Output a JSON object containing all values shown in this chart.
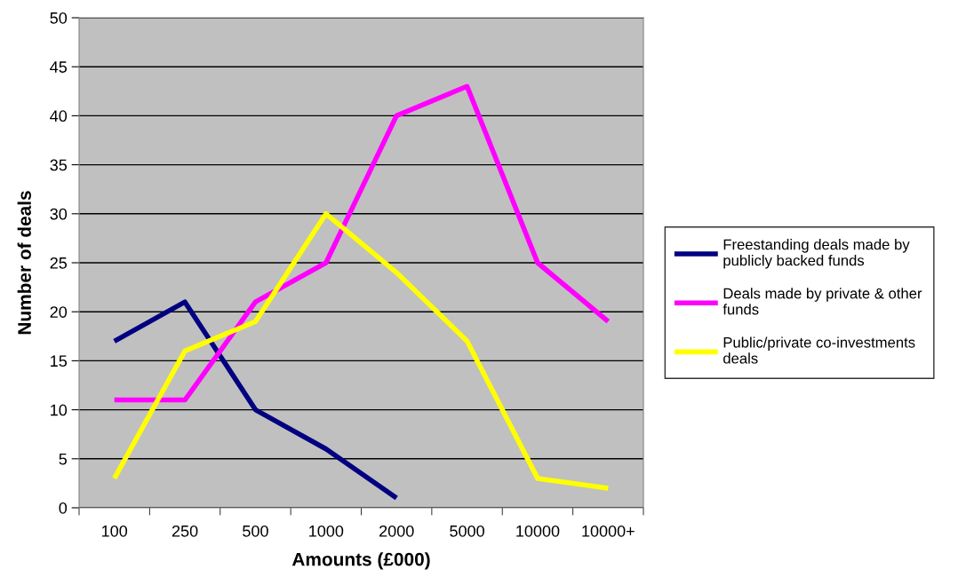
{
  "chart_data": {
    "type": "line",
    "xlabel": "Amounts (£000)",
    "ylabel": "Number of deals",
    "categories": [
      "100",
      "250",
      "500",
      "1000",
      "2000",
      "5000",
      "10000",
      "10000+"
    ],
    "series": [
      {
        "name": "Freestanding deals made by\npublicly backed funds",
        "color": "#000080",
        "values": [
          17,
          21,
          10,
          6,
          1,
          null,
          null,
          null
        ]
      },
      {
        "name": "Deals made by private & other\nfunds",
        "color": "#ff00ff",
        "values": [
          11,
          11,
          21,
          25,
          40,
          43,
          25,
          19
        ]
      },
      {
        "name": "Public/private co-investments\ndeals",
        "color": "#ffff00",
        "values": [
          3,
          16,
          19,
          30,
          24,
          17,
          3,
          2
        ]
      }
    ],
    "ylim": [
      0,
      50
    ],
    "yticks": [
      0,
      5,
      10,
      15,
      20,
      25,
      30,
      35,
      40,
      45,
      50
    ],
    "grid": "y",
    "legend": "right",
    "marker": "none",
    "line_style": "solid"
  }
}
